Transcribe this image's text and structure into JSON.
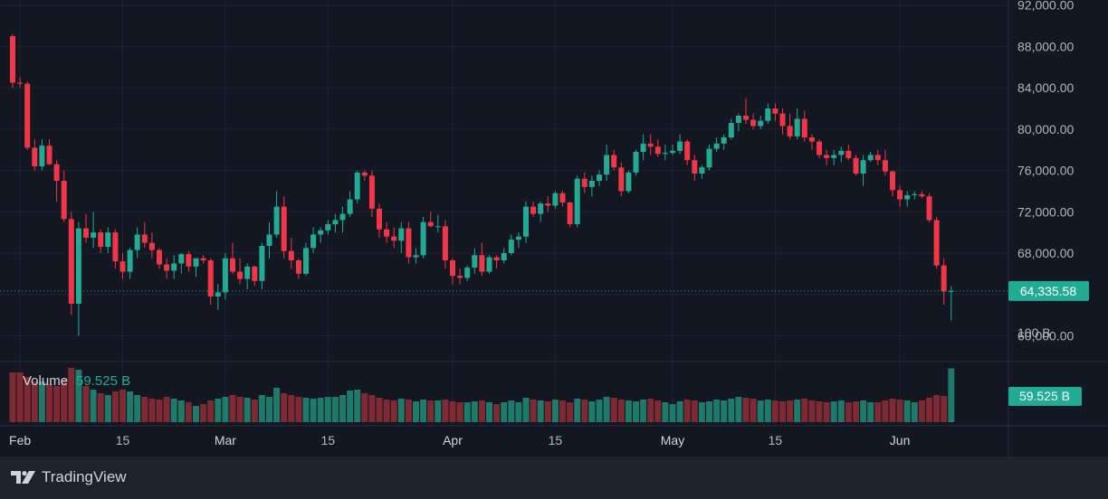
{
  "chart_data": {
    "type": "candlestick",
    "price_axis": {
      "ylim": [
        57500,
        92500
      ],
      "ticks": [
        "92,000.00",
        "88,000.00",
        "84,000.00",
        "80,000.00",
        "76,000.00",
        "72,000.00",
        "68,000.00",
        "64,000.00",
        "60,000.00"
      ],
      "tick_values": [
        92000,
        88000,
        84000,
        80000,
        76000,
        72000,
        68000,
        64000,
        60000
      ]
    },
    "time_axis": {
      "labels": [
        "Feb",
        "15",
        "Mar",
        "15",
        "Apr",
        "15",
        "May",
        "15",
        "Jun"
      ],
      "label_days": [
        1,
        15,
        29,
        43,
        60,
        74,
        90,
        104,
        121
      ]
    },
    "last_price": {
      "value": 64335.58,
      "label": "64,335.58"
    },
    "volume": {
      "legend_label": "Volume",
      "legend_value": "59.525 B",
      "axis_label": "100 B",
      "last_label": "59.525 B",
      "scale_max": 100
    },
    "colors": {
      "up": "#22ab94",
      "down": "#f23645",
      "up_vol": "#1e7a6a",
      "down_vol": "#7f2a33"
    },
    "candles": [
      [
        89000,
        89200,
        84000,
        84500,
        55
      ],
      [
        84500,
        85000,
        84000,
        84400,
        55
      ],
      [
        84400,
        84600,
        78000,
        78200,
        50
      ],
      [
        78200,
        79000,
        76000,
        76400,
        45
      ],
      [
        76400,
        79000,
        76000,
        78400,
        45
      ],
      [
        78400,
        79000,
        76500,
        76600,
        42
      ],
      [
        76600,
        77000,
        73000,
        75000,
        40
      ],
      [
        75000,
        76000,
        71000,
        71300,
        48
      ],
      [
        71300,
        72000,
        62000,
        63100,
        60
      ],
      [
        63100,
        71000,
        60000,
        70400,
        58
      ],
      [
        70400,
        71800,
        69000,
        69500,
        40
      ],
      [
        69500,
        72000,
        68500,
        70000,
        36
      ],
      [
        70000,
        70300,
        68000,
        68600,
        32
      ],
      [
        68600,
        70500,
        68000,
        70000,
        30
      ],
      [
        70000,
        70300,
        66500,
        67200,
        34
      ],
      [
        67200,
        68000,
        65500,
        66200,
        36
      ],
      [
        66200,
        68500,
        65500,
        68300,
        34
      ],
      [
        68300,
        70500,
        67500,
        69800,
        30
      ],
      [
        69800,
        71000,
        68500,
        69000,
        28
      ],
      [
        69000,
        70000,
        67500,
        68300,
        26
      ],
      [
        68300,
        68500,
        66500,
        66900,
        25
      ],
      [
        66900,
        67500,
        65500,
        66300,
        28
      ],
      [
        66300,
        67800,
        65500,
        67000,
        26
      ],
      [
        67000,
        68000,
        66000,
        67900,
        24
      ],
      [
        67900,
        68200,
        66200,
        66700,
        22
      ],
      [
        66700,
        67500,
        65700,
        67500,
        18
      ],
      [
        67500,
        67800,
        67000,
        67300,
        20
      ],
      [
        67300,
        67500,
        63000,
        63800,
        24
      ],
      [
        63800,
        65000,
        62500,
        64200,
        26
      ],
      [
        64200,
        68000,
        63500,
        67500,
        28
      ],
      [
        67500,
        69000,
        66000,
        66200,
        30
      ],
      [
        66200,
        67500,
        65000,
        65500,
        28
      ],
      [
        65500,
        67000,
        64500,
        66700,
        27
      ],
      [
        66700,
        66800,
        64800,
        65300,
        25
      ],
      [
        65300,
        69000,
        64500,
        68700,
        30
      ],
      [
        68700,
        71000,
        67500,
        69800,
        28
      ],
      [
        69800,
        74000,
        69500,
        72500,
        38
      ],
      [
        72500,
        73500,
        67500,
        68200,
        32
      ],
      [
        68200,
        69500,
        66500,
        67300,
        30
      ],
      [
        67300,
        67500,
        65500,
        66000,
        28
      ],
      [
        66000,
        69000,
        65800,
        68500,
        27
      ],
      [
        68500,
        70500,
        68000,
        69800,
        26
      ],
      [
        69800,
        70500,
        69000,
        70200,
        27
      ],
      [
        70200,
        71200,
        69800,
        70800,
        28
      ],
      [
        70800,
        71800,
        70000,
        71200,
        28
      ],
      [
        71200,
        72500,
        70000,
        71800,
        30
      ],
      [
        71800,
        74000,
        71500,
        73200,
        35
      ],
      [
        73200,
        76000,
        72800,
        75800,
        36
      ],
      [
        75800,
        76000,
        75000,
        75500,
        32
      ],
      [
        75500,
        76000,
        71500,
        72300,
        30
      ],
      [
        72300,
        72800,
        69500,
        70300,
        27
      ],
      [
        70300,
        71000,
        69000,
        69600,
        25
      ],
      [
        69600,
        70500,
        68500,
        69200,
        24
      ],
      [
        69200,
        71000,
        68000,
        70400,
        26
      ],
      [
        70400,
        71000,
        67000,
        67600,
        25
      ],
      [
        67600,
        68500,
        67000,
        67800,
        23
      ],
      [
        67800,
        71500,
        67500,
        71000,
        25
      ],
      [
        71000,
        72000,
        70500,
        70600,
        24
      ],
      [
        70600,
        71700,
        70000,
        70600,
        24
      ],
      [
        70600,
        71200,
        66500,
        67300,
        25
      ],
      [
        67300,
        67500,
        65000,
        65800,
        23
      ],
      [
        65800,
        66500,
        65000,
        65600,
        22
      ],
      [
        65600,
        66800,
        65300,
        66600,
        22
      ],
      [
        66600,
        68500,
        66000,
        67800,
        23
      ],
      [
        67800,
        69000,
        65800,
        66200,
        24
      ],
      [
        66200,
        67800,
        66000,
        67600,
        22
      ],
      [
        67600,
        67800,
        66500,
        67300,
        20
      ],
      [
        67300,
        68500,
        67000,
        68000,
        22
      ],
      [
        68000,
        69800,
        67800,
        69300,
        24
      ],
      [
        69300,
        70000,
        68500,
        69600,
        22
      ],
      [
        69600,
        73000,
        69000,
        72500,
        27
      ],
      [
        72500,
        73000,
        71500,
        71800,
        25
      ],
      [
        71800,
        73000,
        71000,
        72800,
        24
      ],
      [
        72800,
        73500,
        72000,
        72600,
        23
      ],
      [
        72600,
        74000,
        72300,
        73800,
        25
      ],
      [
        73800,
        74000,
        72500,
        72900,
        24
      ],
      [
        72900,
        73000,
        70500,
        70800,
        22
      ],
      [
        70800,
        75500,
        70500,
        75200,
        26
      ],
      [
        75200,
        75800,
        73800,
        74400,
        25
      ],
      [
        74400,
        75500,
        73500,
        75000,
        23
      ],
      [
        75000,
        76000,
        74500,
        75600,
        25
      ],
      [
        75600,
        78500,
        75000,
        77500,
        28
      ],
      [
        77500,
        78000,
        76000,
        76300,
        27
      ],
      [
        76300,
        76800,
        73500,
        74000,
        25
      ],
      [
        74000,
        76000,
        73800,
        75800,
        24
      ],
      [
        75800,
        78000,
        75500,
        77800,
        23
      ],
      [
        77800,
        79500,
        77000,
        78600,
        25
      ],
      [
        78600,
        79500,
        77500,
        78300,
        26
      ],
      [
        78300,
        79000,
        77300,
        77600,
        24
      ],
      [
        77600,
        78500,
        77000,
        77700,
        22
      ],
      [
        77700,
        78500,
        77500,
        77900,
        20
      ],
      [
        77900,
        79500,
        77600,
        78800,
        23
      ],
      [
        78800,
        79000,
        76500,
        77000,
        25
      ],
      [
        77000,
        77500,
        75000,
        75700,
        24
      ],
      [
        75700,
        76500,
        75200,
        76300,
        22
      ],
      [
        76300,
        78500,
        76000,
        78100,
        23
      ],
      [
        78100,
        79200,
        77800,
        78600,
        25
      ],
      [
        78600,
        79500,
        78000,
        79200,
        24
      ],
      [
        79200,
        81000,
        79000,
        80600,
        26
      ],
      [
        80600,
        81500,
        79800,
        81300,
        28
      ],
      [
        81300,
        83000,
        80500,
        80900,
        27
      ],
      [
        80900,
        81500,
        80000,
        80300,
        26
      ],
      [
        80300,
        81300,
        80000,
        80800,
        24
      ],
      [
        80800,
        82500,
        80500,
        82000,
        25
      ],
      [
        82000,
        82500,
        80800,
        81500,
        24
      ],
      [
        81500,
        82000,
        79500,
        80300,
        23
      ],
      [
        80300,
        81500,
        79000,
        79300,
        24
      ],
      [
        79300,
        82000,
        79000,
        81000,
        25
      ],
      [
        81000,
        81800,
        78800,
        79200,
        26
      ],
      [
        79200,
        79500,
        78000,
        78800,
        24
      ],
      [
        78800,
        79000,
        77200,
        77500,
        23
      ],
      [
        77500,
        78000,
        76500,
        77200,
        22
      ],
      [
        77200,
        78000,
        76500,
        77500,
        23
      ],
      [
        77500,
        78300,
        76800,
        77900,
        24
      ],
      [
        77900,
        78500,
        77000,
        77200,
        22
      ],
      [
        77200,
        77500,
        75500,
        75700,
        23
      ],
      [
        75700,
        77500,
        74500,
        77000,
        24
      ],
      [
        77000,
        77800,
        76800,
        77500,
        22
      ],
      [
        77500,
        78000,
        76500,
        77000,
        22
      ],
      [
        77000,
        78000,
        75500,
        75900,
        24
      ],
      [
        75900,
        76000,
        73500,
        74100,
        26
      ],
      [
        74100,
        74500,
        72500,
        73200,
        25
      ],
      [
        73200,
        74000,
        72500,
        73600,
        24
      ],
      [
        73600,
        74000,
        73200,
        73700,
        22
      ],
      [
        73700,
        74000,
        73300,
        73500,
        24
      ],
      [
        73500,
        73800,
        71000,
        71200,
        27
      ],
      [
        71200,
        71500,
        66500,
        66800,
        30
      ],
      [
        66800,
        67500,
        63000,
        64300,
        29
      ],
      [
        64300,
        64800,
        61500,
        64335.58,
        59.525
      ]
    ]
  }
}
